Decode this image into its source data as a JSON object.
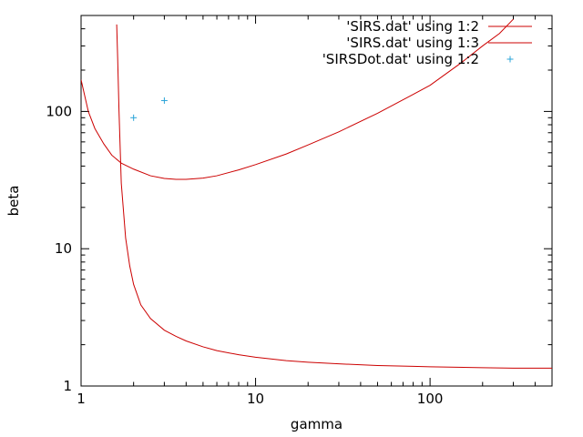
{
  "chart_data": {
    "type": "line",
    "title": "",
    "xlabel": "gamma",
    "ylabel": "beta",
    "xscale": "log",
    "yscale": "log",
    "xlim": [
      1,
      500
    ],
    "ylim": [
      1,
      500
    ],
    "x_ticks": [
      {
        "value": 1,
        "label": "1"
      },
      {
        "value": 10,
        "label": "10"
      },
      {
        "value": 100,
        "label": "100"
      }
    ],
    "y_ticks": [
      {
        "value": 1,
        "label": "1"
      },
      {
        "value": 10,
        "label": "10"
      },
      {
        "value": 100,
        "label": "100"
      }
    ],
    "legend_position": "top-right",
    "series": [
      {
        "name": "'SIRS.dat' using 1:2",
        "style": "line",
        "color": "#cc0000",
        "x": [
          1.0,
          1.1,
          1.2,
          1.35,
          1.5,
          1.7,
          2.0,
          2.5,
          3.0,
          3.5,
          4.0,
          5.0,
          6.0,
          8.0,
          10.0,
          15.0,
          20.0,
          30.0,
          50.0,
          80.0,
          100.0,
          150.0,
          200.0,
          250.0,
          300.0
        ],
        "y": [
          170,
          100,
          75,
          58,
          48,
          42,
          38,
          34,
          32.5,
          32,
          32,
          32.7,
          34,
          37.5,
          41,
          49,
          57,
          71,
          97,
          133,
          155,
          225,
          300,
          370,
          470
        ]
      },
      {
        "name": "'SIRS.dat' using 1:3",
        "style": "line",
        "color": "#cc0000",
        "x": [
          1.6,
          1.62,
          1.65,
          1.7,
          1.8,
          1.9,
          2.0,
          2.2,
          2.5,
          3.0,
          3.5,
          4.0,
          5.0,
          6.0,
          8.0,
          10.0,
          15.0,
          20.0,
          30.0,
          50.0,
          80.0,
          100.0,
          200.0,
          300.0,
          500.0
        ],
        "y": [
          430,
          250,
          100,
          30,
          12,
          7.5,
          5.5,
          3.9,
          3.1,
          2.55,
          2.3,
          2.13,
          1.93,
          1.81,
          1.69,
          1.62,
          1.53,
          1.49,
          1.45,
          1.41,
          1.39,
          1.38,
          1.36,
          1.35,
          1.35
        ]
      },
      {
        "name": "'SIRSDot.dat' using 1:2",
        "style": "points",
        "color": "#2aa4d8",
        "x": [
          2,
          3
        ],
        "y": [
          90,
          120
        ]
      }
    ]
  }
}
